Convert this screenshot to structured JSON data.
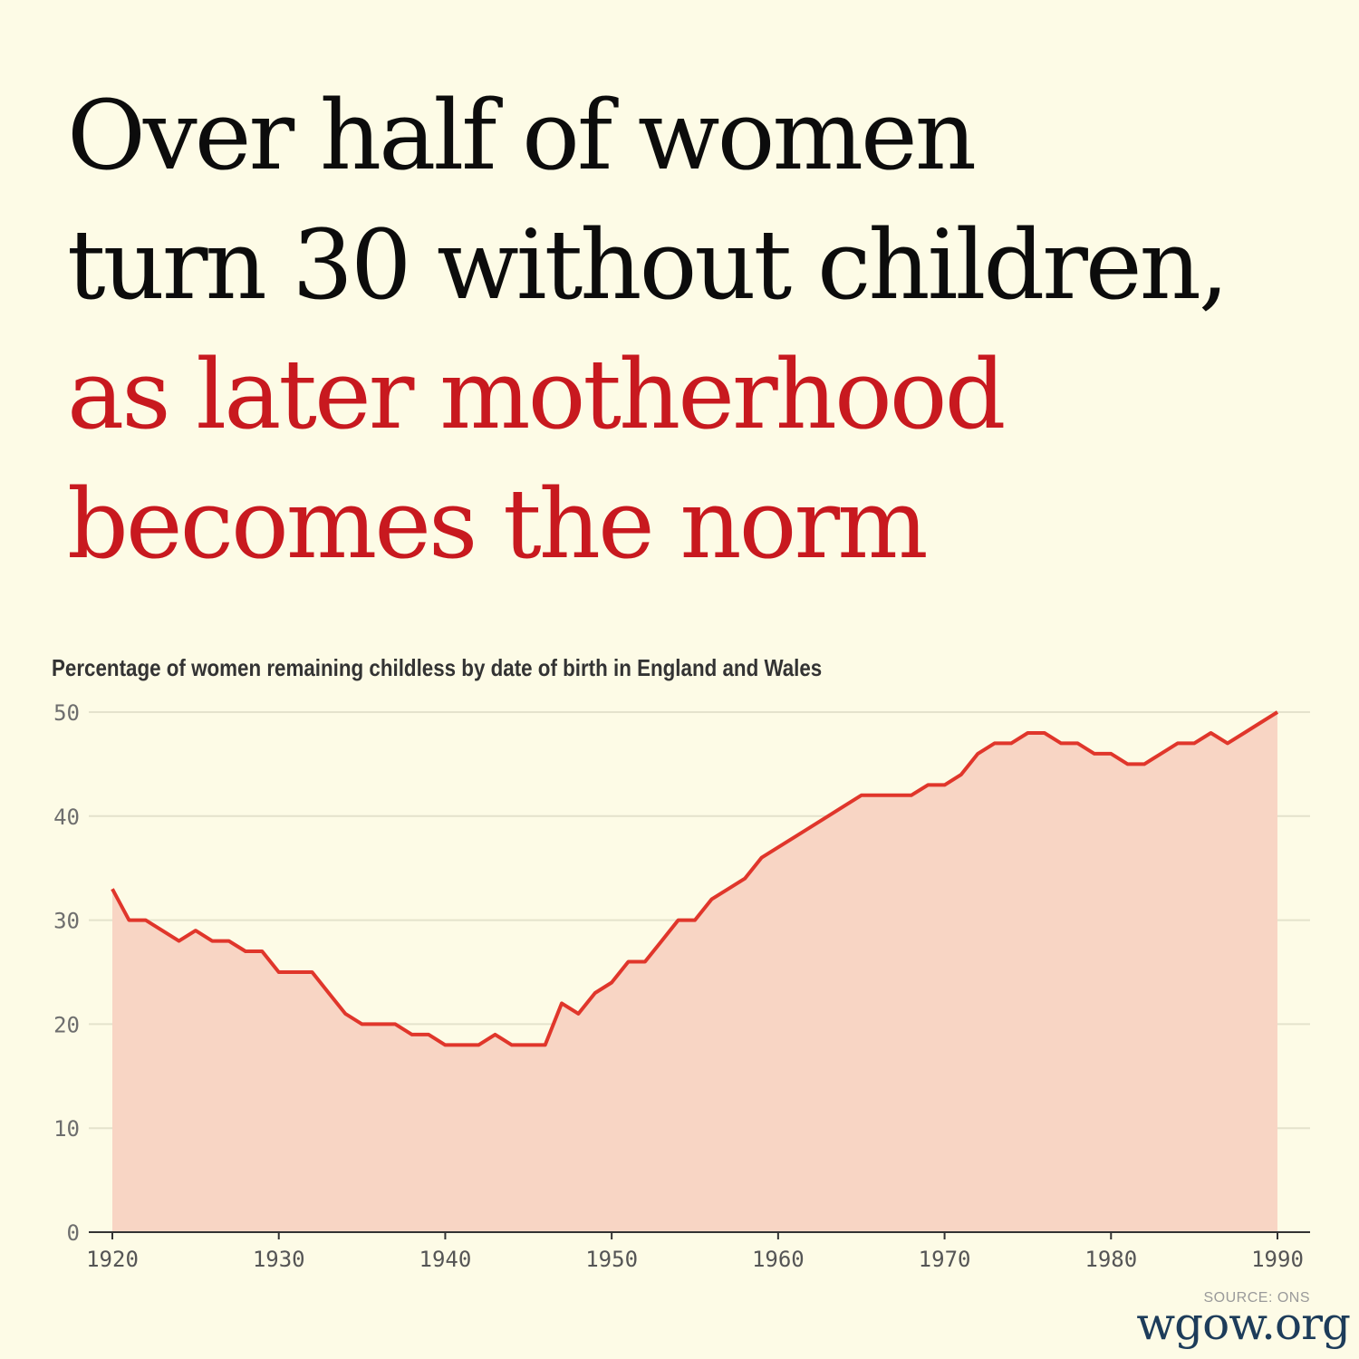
{
  "headline": {
    "line1": "Over half of women",
    "line2": "turn 30 without children,",
    "line3": "as later motherhood",
    "line4": "becomes the norm",
    "highlight_color": "#c8191f"
  },
  "source": "SOURCE: ONS",
  "brand": "wgow.org",
  "chart_data": {
    "type": "area",
    "title": "Percentage of women remaining childless by date of birth in England and Wales",
    "xlabel": "",
    "ylabel": "",
    "xlim": [
      1920,
      1990
    ],
    "ylim": [
      0,
      50
    ],
    "xticks": [
      1920,
      1930,
      1940,
      1950,
      1960,
      1970,
      1980,
      1990
    ],
    "yticks": [
      0,
      10,
      20,
      30,
      40,
      50
    ],
    "grid": true,
    "line_color": "#e0362b",
    "fill_color": "#f8d5c4",
    "x": [
      1920,
      1921,
      1922,
      1923,
      1924,
      1925,
      1926,
      1927,
      1928,
      1929,
      1930,
      1931,
      1932,
      1933,
      1934,
      1935,
      1936,
      1937,
      1938,
      1939,
      1940,
      1941,
      1942,
      1943,
      1944,
      1945,
      1946,
      1947,
      1948,
      1949,
      1950,
      1951,
      1952,
      1953,
      1954,
      1955,
      1956,
      1957,
      1958,
      1959,
      1960,
      1961,
      1962,
      1963,
      1964,
      1965,
      1966,
      1967,
      1968,
      1969,
      1970,
      1971,
      1972,
      1973,
      1974,
      1975,
      1976,
      1977,
      1978,
      1979,
      1980,
      1981,
      1982,
      1983,
      1984,
      1985,
      1986,
      1987,
      1988,
      1989,
      1990
    ],
    "values": [
      33,
      30,
      30,
      29,
      28,
      29,
      28,
      28,
      27,
      27,
      25,
      25,
      25,
      23,
      21,
      20,
      20,
      20,
      19,
      19,
      18,
      18,
      18,
      19,
      18,
      18,
      18,
      22,
      21,
      23,
      24,
      26,
      26,
      28,
      30,
      30,
      32,
      33,
      34,
      36,
      37,
      38,
      39,
      40,
      41,
      42,
      42,
      42,
      42,
      43,
      43,
      44,
      46,
      47,
      47,
      48,
      48,
      47,
      47,
      46,
      46,
      45,
      45,
      46,
      47,
      47,
      48,
      47,
      48,
      49,
      50
    ]
  }
}
